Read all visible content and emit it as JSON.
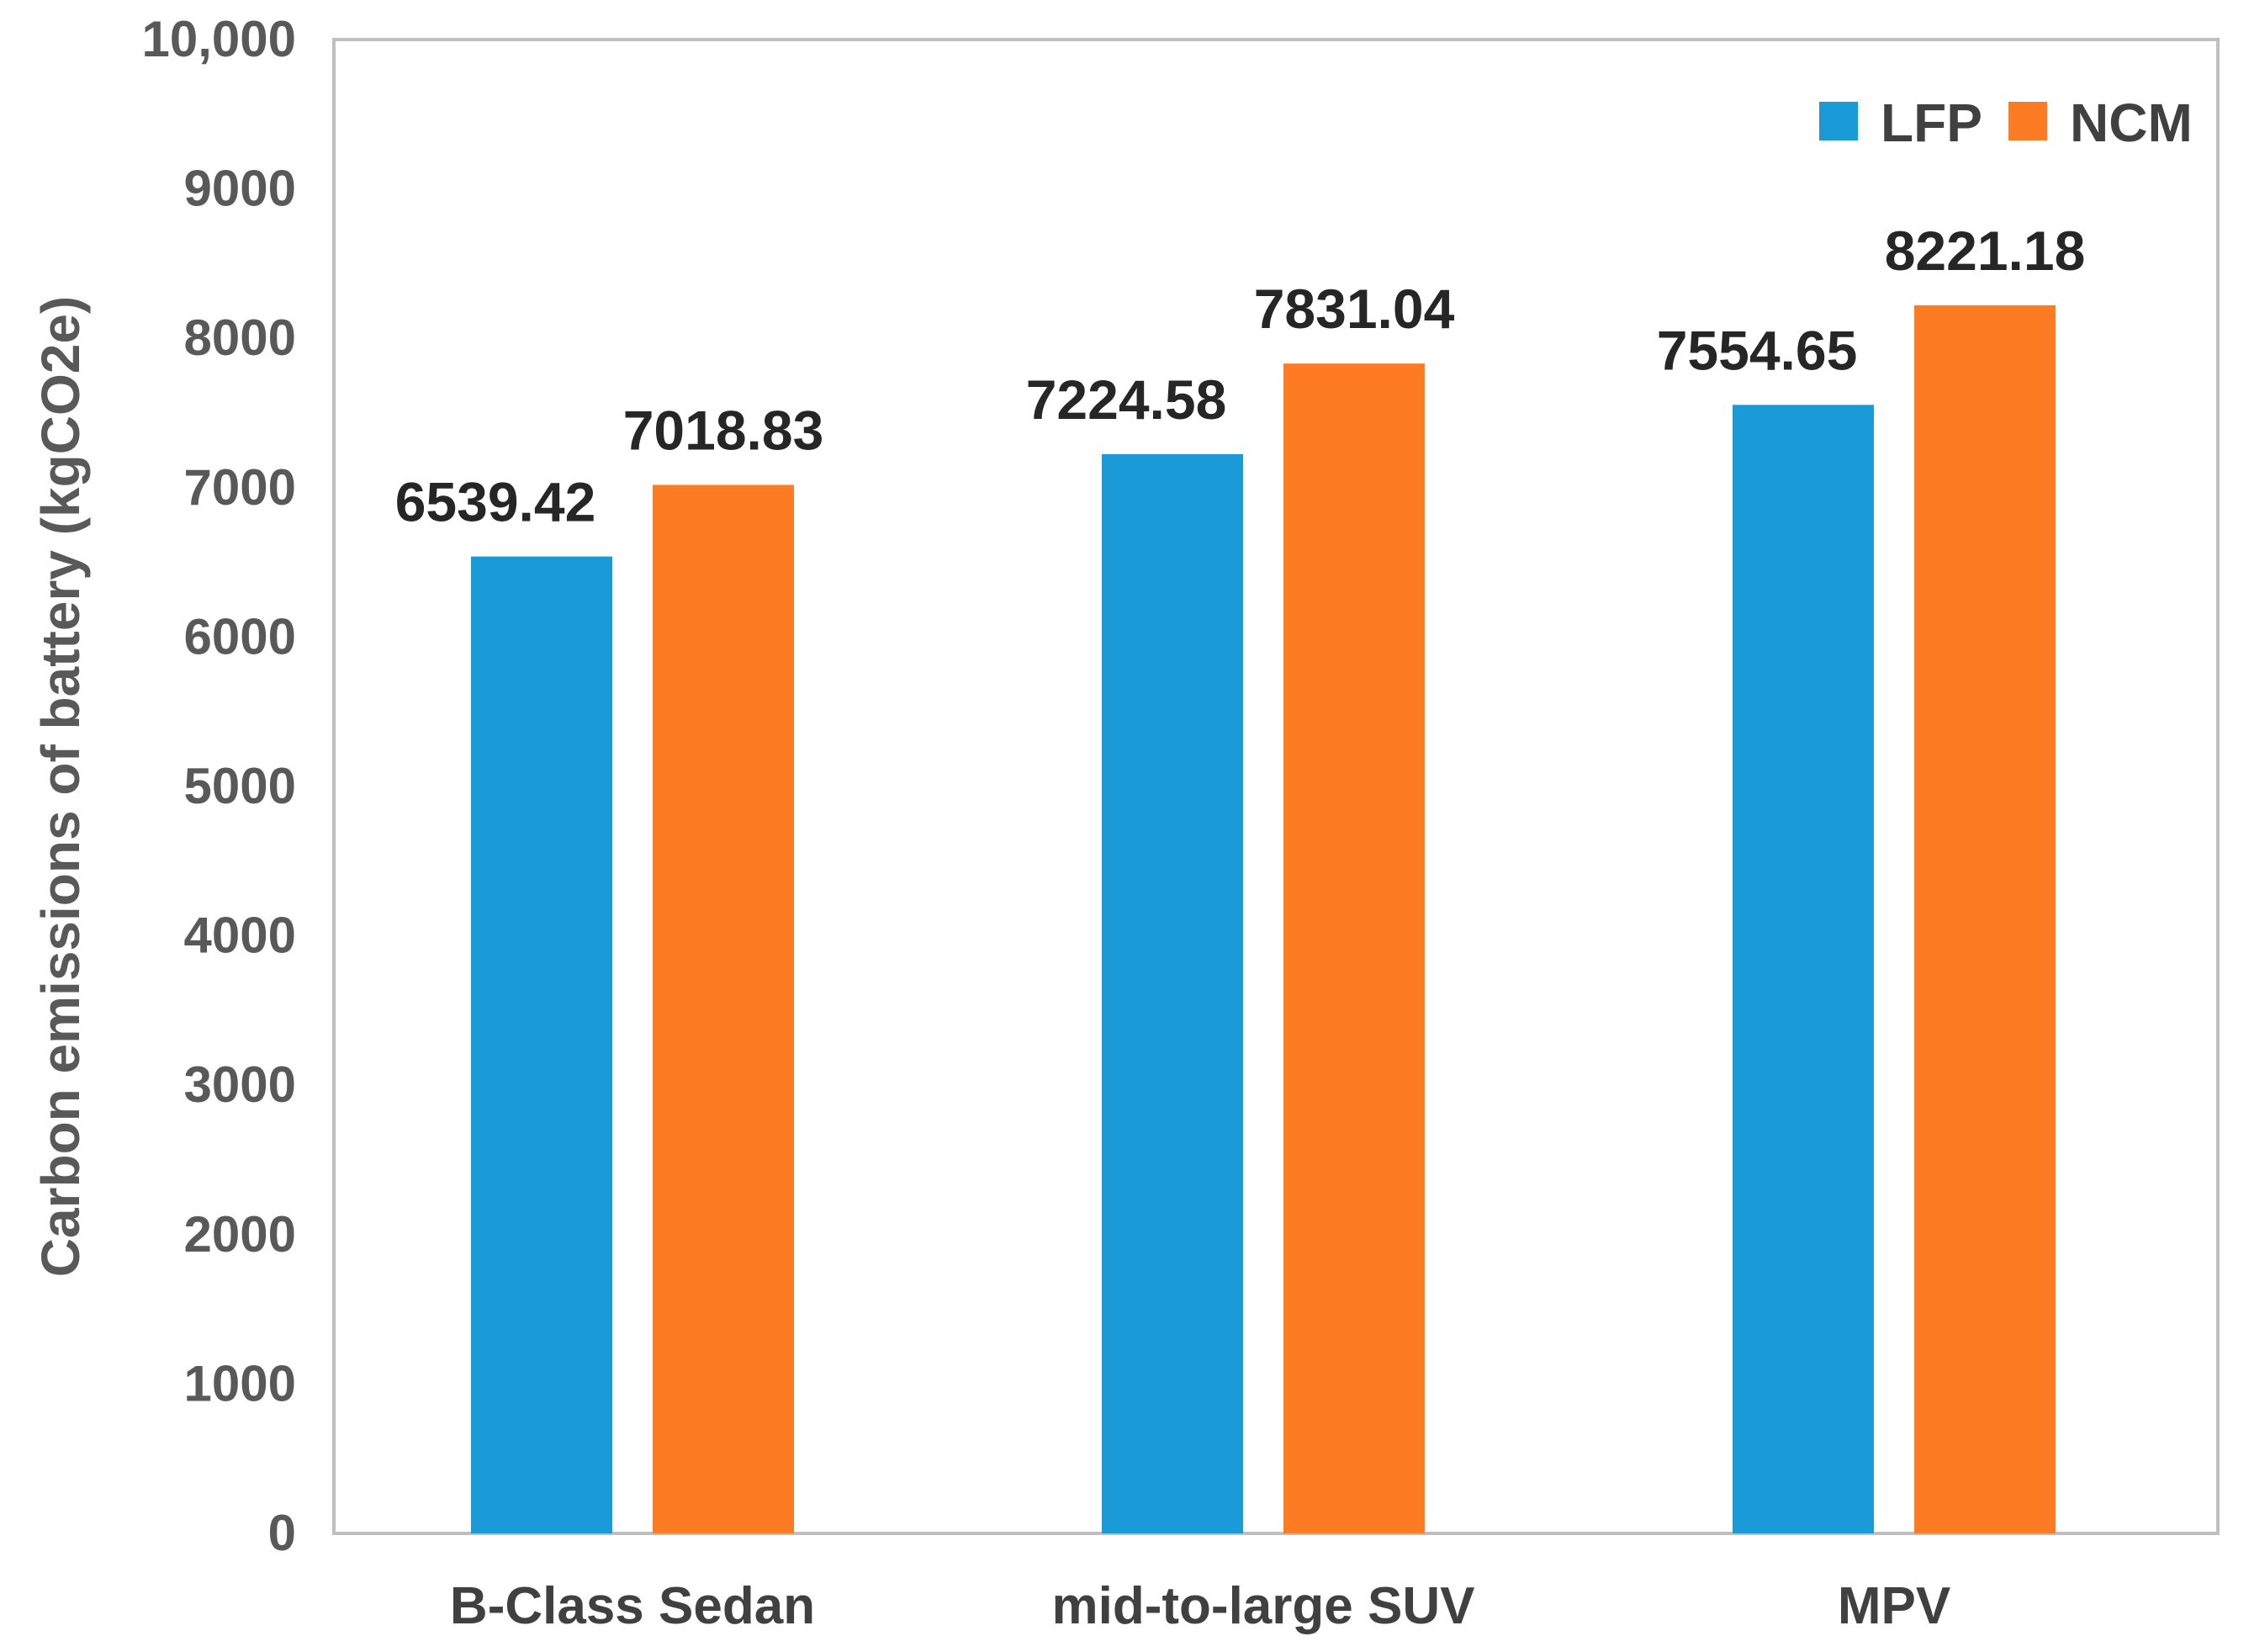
{
  "chart_data": {
    "type": "bar",
    "title": "",
    "xlabel": "",
    "ylabel": "Carbon emissions  of battery (kgCO2e)",
    "ylim": [
      0,
      10000
    ],
    "yticks": [
      0,
      1000,
      2000,
      3000,
      4000,
      5000,
      6000,
      7000,
      8000,
      9000,
      10000
    ],
    "ytick_labels": [
      "0",
      "1000",
      "2000",
      "3000",
      "4000",
      "5000",
      "6000",
      "7000",
      "8000",
      "9000",
      "10,000"
    ],
    "categories": [
      "B-Class Sedan",
      "mid-to-large SUV",
      "MPV"
    ],
    "series": [
      {
        "name": "LFP",
        "color": "#1a9ad6",
        "values": [
          6539.42,
          7224.58,
          7554.65
        ],
        "labels": [
          "6539.42",
          "7224.58",
          "7554.65"
        ]
      },
      {
        "name": "NCM",
        "color": "#fd7b22",
        "values": [
          7018.83,
          7831.04,
          8221.18
        ],
        "labels": [
          "7018.83",
          "7831.04",
          "8221.18"
        ]
      }
    ],
    "grid": false,
    "legend_position": "top-right"
  }
}
